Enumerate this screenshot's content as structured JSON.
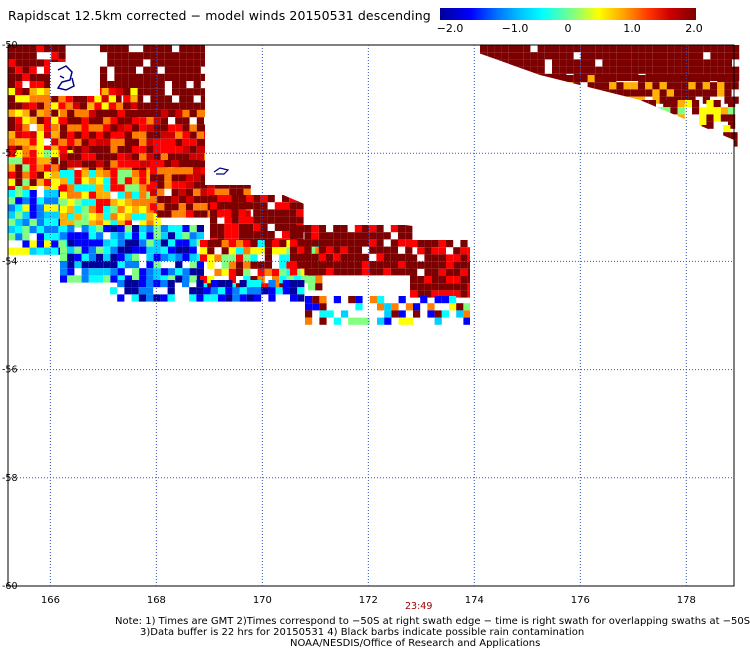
{
  "title": "Rapidscat 12.5km corrected − model winds 20150531 descending",
  "colorbar": {
    "ticks": [
      {
        "value": -2.0,
        "label": "−2.0"
      },
      {
        "value": -1.0,
        "label": "−1.0"
      },
      {
        "value": 0,
        "label": "0"
      },
      {
        "value": 1.0,
        "label": "1.0"
      },
      {
        "value": 2.0,
        "label": "2.0"
      }
    ],
    "range": [
      -2.0,
      2.0
    ],
    "colors": [
      "#00009a",
      "#0000ff",
      "#00c8ff",
      "#00ffff",
      "#80ff80",
      "#ffff00",
      "#ffa000",
      "#ff3000",
      "#7d0000"
    ]
  },
  "map": {
    "lat_range": [
      -60,
      -50
    ],
    "lon_range": [
      165.2,
      178.9
    ],
    "lat_ticks": [
      {
        "value": -50,
        "label": "-50"
      },
      {
        "value": -52,
        "label": "-52"
      },
      {
        "value": -54,
        "label": "-54"
      },
      {
        "value": -56,
        "label": "-56"
      },
      {
        "value": -58,
        "label": "-58"
      },
      {
        "value": -60,
        "label": "-60"
      }
    ],
    "lon_ticks": [
      {
        "value": 166,
        "label": "166"
      },
      {
        "value": 168,
        "label": "168"
      },
      {
        "value": 170,
        "label": "170"
      },
      {
        "value": 172,
        "label": "172"
      },
      {
        "value": 174,
        "label": "174"
      },
      {
        "value": 176,
        "label": "176"
      },
      {
        "value": 178,
        "label": "178"
      }
    ],
    "grid": "dotted",
    "time_label": {
      "text": "23:49",
      "lon": 172.95,
      "lat": -60.3
    }
  },
  "notes": {
    "line1": "Note: 1) Times are GMT 2)Times correspond to −50S at right swath edge − time is right swath for overlapping swaths at −50S",
    "line2": "3)Data buffer is 22 hrs for 20150531 4) Black barbs indicate possible rain contamination",
    "line3": "NOAA/NESDIS/Office of Research and Applications"
  }
}
